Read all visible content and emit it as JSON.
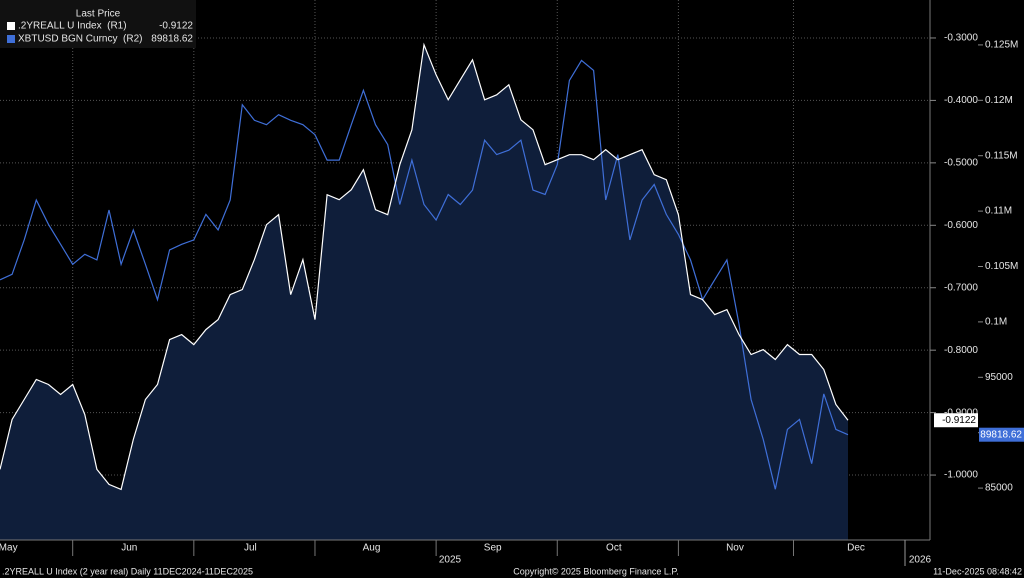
{
  "chart_data": {
    "type": "line",
    "legend_title": "Last Price",
    "footer_left": ".2YREALL U Index (2 year real) Daily 11DEC2024-11DEC2025",
    "footer_center": "Copyright© 2025 Bloomberg Finance L.P.",
    "footer_right": "11-Dec-2025 08:48:42",
    "year_labels": [
      "2025",
      "2026"
    ],
    "categories": [
      null,
      "May",
      null,
      null,
      null,
      null,
      null,
      null,
      null,
      null,
      null,
      "Jun",
      null,
      null,
      null,
      null,
      null,
      null,
      null,
      null,
      null,
      "Jul",
      null,
      null,
      null,
      null,
      null,
      null,
      null,
      null,
      null,
      "Aug",
      null,
      null,
      null,
      null,
      null,
      null,
      null,
      null,
      null,
      "Sep",
      null,
      null,
      null,
      null,
      null,
      null,
      null,
      null,
      null,
      "Oct",
      null,
      null,
      null,
      null,
      null,
      null,
      null,
      null,
      null,
      "Nov",
      null,
      null,
      null,
      null,
      null,
      null,
      null,
      null,
      "Dec"
    ],
    "series": [
      {
        "name": ".2YREALL U Index  (R1)",
        "color": "#ffffff",
        "area": true,
        "area_color": "#0f1e3a",
        "values": [
          -0.991,
          -0.911,
          -0.879,
          -0.847,
          -0.855,
          -0.871,
          -0.855,
          -0.903,
          -0.991,
          -1.015,
          -1.023,
          -0.943,
          -0.879,
          -0.855,
          -0.783,
          -0.775,
          -0.791,
          -0.767,
          -0.751,
          -0.711,
          -0.703,
          -0.655,
          -0.599,
          -0.583,
          -0.711,
          -0.655,
          -0.751,
          -0.551,
          -0.559,
          -0.543,
          -0.511,
          -0.575,
          -0.583,
          -0.503,
          -0.447,
          -0.311,
          -0.359,
          -0.399,
          -0.367,
          -0.335,
          -0.399,
          -0.391,
          -0.375,
          -0.431,
          -0.447,
          -0.503,
          -0.495,
          -0.487,
          -0.487,
          -0.495,
          -0.479,
          -0.495,
          -0.487,
          -0.479,
          -0.519,
          -0.527,
          -0.583,
          -0.711,
          -0.719,
          -0.743,
          -0.735,
          -0.775,
          -0.807,
          -0.799,
          -0.815,
          -0.791,
          -0.807,
          -0.807,
          -0.831,
          -0.887,
          -0.9122
        ]
      },
      {
        "name": "XBTUSD BGN Curncy  (R2)",
        "color": "#3f6fd8",
        "axis": "y2",
        "values": [
          103800,
          104300,
          107400,
          111000,
          108800,
          107000,
          105200,
          106100,
          105600,
          110100,
          105200,
          108300,
          105200,
          102000,
          106500,
          107000,
          107400,
          109700,
          108300,
          111000,
          119600,
          118200,
          117800,
          118700,
          118200,
          117800,
          116900,
          114600,
          114600,
          117800,
          120900,
          117800,
          116000,
          110600,
          114600,
          110600,
          109200,
          111500,
          110600,
          111900,
          116400,
          115100,
          115500,
          116400,
          111900,
          111500,
          114200,
          121800,
          123600,
          122700,
          111000,
          115100,
          107400,
          111000,
          112400,
          109700,
          107900,
          105600,
          102000,
          103800,
          105600,
          99800,
          93000,
          89400,
          84900,
          90300,
          91200,
          87200,
          93500,
          90300,
          89818.62
        ]
      }
    ],
    "ylim": [
      -1.104,
      -0.2392
    ],
    "yticks": [
      {
        "value": -0.3,
        "label": "-0.3000"
      },
      {
        "value": -0.4,
        "label": "-0.4000"
      },
      {
        "value": -0.5,
        "label": "-0.5000"
      },
      {
        "value": -0.6,
        "label": "-0.6000"
      },
      {
        "value": -0.7,
        "label": "-0.7000"
      },
      {
        "value": -0.8,
        "label": "-0.8000"
      },
      {
        "value": -0.9,
        "label": "-0.9000"
      },
      {
        "value": -1.0,
        "label": "-1.0000"
      }
    ],
    "y2lim": [
      80315,
      129054
    ],
    "y2ticks": [
      {
        "value": 125000,
        "label": "0.125M"
      },
      {
        "value": 120000,
        "label": "0.12M"
      },
      {
        "value": 115000,
        "label": "0.115M"
      },
      {
        "value": 110000,
        "label": "0.11M"
      },
      {
        "value": 105000,
        "label": "0.105M"
      },
      {
        "value": 100000,
        "label": "0.1M"
      },
      95000,
      90000,
      85000
    ],
    "grid": true
  }
}
